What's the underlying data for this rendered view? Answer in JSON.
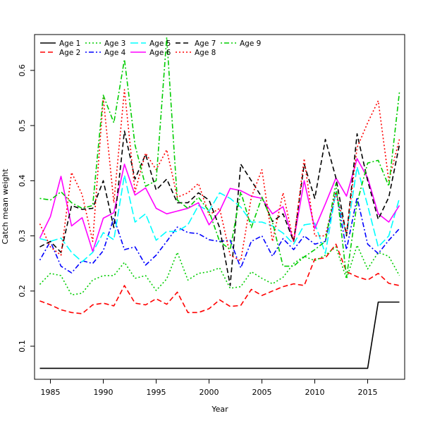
{
  "chart_data": {
    "type": "line",
    "xlabel": "Year",
    "ylabel": "Catch mean weight",
    "xlim": [
      1983.5,
      2018.5
    ],
    "ylim": [
      0.04,
      0.665
    ],
    "x_ticks": [
      1985,
      1990,
      1995,
      2000,
      2005,
      2010,
      2015
    ],
    "y_ticks": [
      0.1,
      0.2,
      0.3,
      0.4,
      0.5,
      0.6
    ],
    "grid": false,
    "legend_position": "top-left",
    "x": [
      1984,
      1985,
      1986,
      1987,
      1988,
      1989,
      1990,
      1991,
      1992,
      1993,
      1994,
      1995,
      1996,
      1997,
      1998,
      1999,
      2000,
      2001,
      2002,
      2003,
      2004,
      2005,
      2006,
      2007,
      2008,
      2009,
      2010,
      2011,
      2012,
      2013,
      2014,
      2015,
      2016,
      2017,
      2018
    ],
    "series": [
      {
        "name": "Age 1",
        "color": "#000000",
        "dash": "solid",
        "values": [
          0.06,
          0.06,
          0.06,
          0.06,
          0.06,
          0.06,
          0.06,
          0.06,
          0.06,
          0.06,
          0.06,
          0.06,
          0.06,
          0.06,
          0.06,
          0.06,
          0.06,
          0.06,
          0.06,
          0.06,
          0.06,
          0.06,
          0.06,
          0.06,
          0.06,
          0.06,
          0.06,
          0.06,
          0.06,
          0.06,
          0.06,
          0.06,
          0.18,
          0.18,
          0.18
        ]
      },
      {
        "name": "Age 2",
        "color": "#ff0000",
        "dash": "dashed",
        "values": [
          0.182,
          0.175,
          0.166,
          0.161,
          0.159,
          0.175,
          0.178,
          0.173,
          0.21,
          0.178,
          0.175,
          0.186,
          0.176,
          0.198,
          0.161,
          0.161,
          0.168,
          0.184,
          0.172,
          0.174,
          0.203,
          0.192,
          0.2,
          0.208,
          0.213,
          0.21,
          0.258,
          0.26,
          0.285,
          0.235,
          0.226,
          0.22,
          0.232,
          0.214,
          0.21
        ]
      },
      {
        "name": "Age 3",
        "color": "#00cd00",
        "dash": "dotted",
        "values": [
          0.212,
          0.232,
          0.228,
          0.193,
          0.196,
          0.22,
          0.228,
          0.228,
          0.252,
          0.223,
          0.228,
          0.201,
          0.222,
          0.27,
          0.22,
          0.232,
          0.235,
          0.242,
          0.205,
          0.208,
          0.235,
          0.223,
          0.213,
          0.225,
          0.25,
          0.263,
          0.255,
          0.265,
          0.28,
          0.222,
          0.283,
          0.24,
          0.27,
          0.263,
          0.228
        ]
      },
      {
        "name": "Age 4",
        "color": "#0000ff",
        "dash": "dotdash",
        "values": [
          0.256,
          0.29,
          0.245,
          0.233,
          0.255,
          0.25,
          0.273,
          0.333,
          0.275,
          0.28,
          0.247,
          0.265,
          0.29,
          0.316,
          0.306,
          0.304,
          0.293,
          0.29,
          0.292,
          0.242,
          0.29,
          0.3,
          0.263,
          0.295,
          0.275,
          0.3,
          0.285,
          0.29,
          0.38,
          0.275,
          0.37,
          0.285,
          0.268,
          0.292,
          0.313
        ]
      },
      {
        "name": "Age 5",
        "color": "#00ffff",
        "dash": "longdash",
        "values": [
          0.295,
          0.29,
          0.296,
          0.27,
          0.253,
          0.27,
          0.306,
          0.293,
          0.41,
          0.325,
          0.34,
          0.292,
          0.308,
          0.308,
          0.32,
          0.355,
          0.345,
          0.378,
          0.368,
          0.352,
          0.325,
          0.325,
          0.318,
          0.305,
          0.285,
          0.32,
          0.323,
          0.268,
          0.38,
          0.3,
          0.425,
          0.355,
          0.28,
          0.3,
          0.368
        ]
      },
      {
        "name": "Age 6",
        "color": "#ff00ff",
        "dash": "solid",
        "values": [
          0.296,
          0.335,
          0.408,
          0.318,
          0.333,
          0.272,
          0.332,
          0.342,
          0.43,
          0.374,
          0.387,
          0.35,
          0.34,
          0.345,
          0.35,
          0.36,
          0.32,
          0.345,
          0.386,
          0.382,
          0.372,
          0.368,
          0.34,
          0.353,
          0.29,
          0.4,
          0.313,
          0.358,
          0.405,
          0.372,
          0.44,
          0.405,
          0.34,
          0.325,
          0.355
        ]
      },
      {
        "name": "Age 7",
        "color": "#000000",
        "dash": "dashed",
        "values": [
          0.28,
          0.29,
          0.27,
          0.355,
          0.348,
          0.35,
          0.4,
          0.315,
          0.49,
          0.403,
          0.448,
          0.383,
          0.403,
          0.36,
          0.36,
          0.378,
          0.365,
          0.315,
          0.21,
          0.43,
          0.4,
          0.37,
          0.326,
          0.34,
          0.29,
          0.43,
          0.368,
          0.475,
          0.405,
          0.3,
          0.485,
          0.4,
          0.33,
          0.37,
          0.465
        ]
      },
      {
        "name": "Age 8",
        "color": "#ff0000",
        "dash": "dotted",
        "values": [
          0.322,
          0.28,
          0.265,
          0.415,
          0.375,
          0.29,
          0.55,
          0.36,
          0.565,
          0.38,
          0.45,
          0.42,
          0.456,
          0.37,
          0.378,
          0.395,
          0.338,
          0.35,
          0.265,
          0.255,
          0.37,
          0.42,
          0.29,
          0.378,
          0.29,
          0.44,
          0.3,
          0.3,
          0.38,
          0.303,
          0.46,
          0.505,
          0.545,
          0.4,
          0.475
        ]
      },
      {
        "name": "Age 9",
        "color": "#00cd00",
        "dash": "dotdash",
        "values": [
          0.368,
          0.365,
          0.38,
          0.36,
          0.35,
          0.355,
          0.555,
          0.505,
          0.62,
          0.465,
          0.39,
          0.4,
          0.66,
          0.365,
          0.35,
          0.37,
          0.345,
          0.29,
          0.275,
          0.38,
          0.315,
          0.37,
          0.325,
          0.245,
          0.245,
          0.262,
          0.275,
          0.29,
          0.395,
          0.225,
          0.36,
          0.432,
          0.437,
          0.39,
          0.56
        ]
      }
    ]
  }
}
